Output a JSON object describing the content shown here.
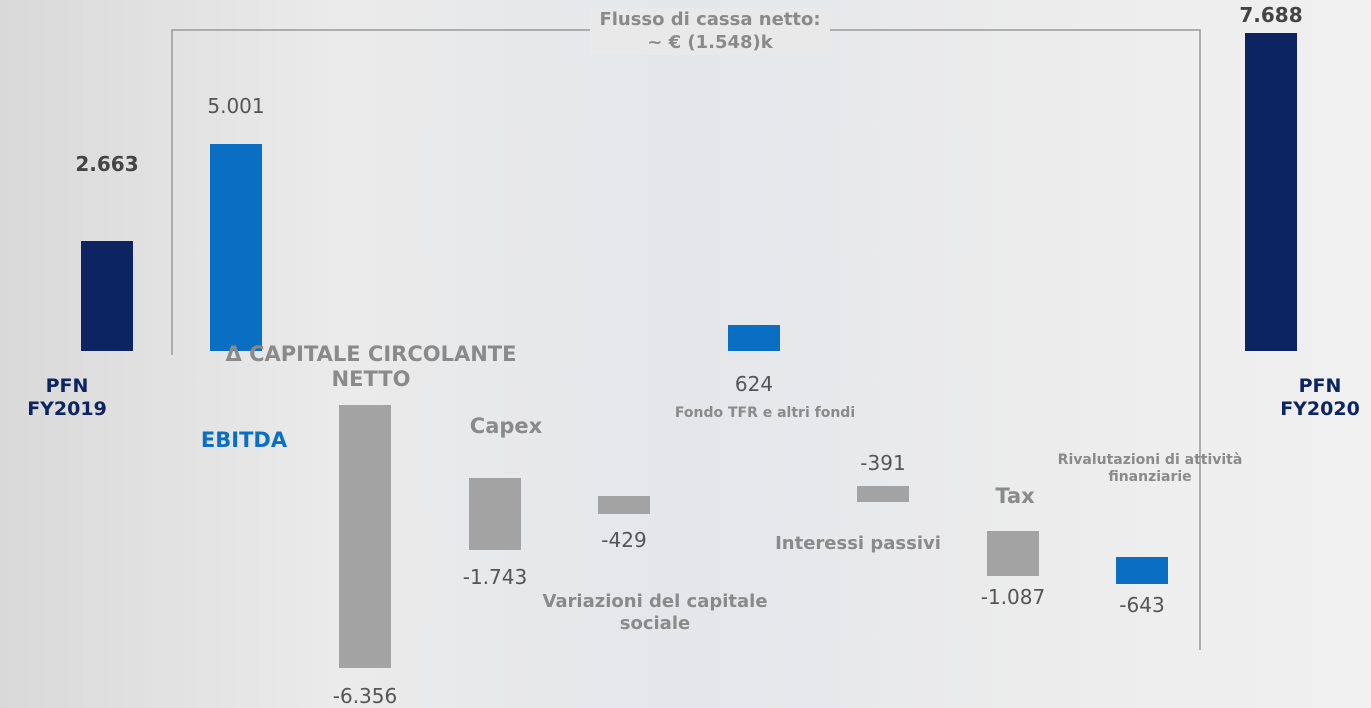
{
  "chart_data": {
    "type": "waterfall",
    "annotation": "Flusso di cassa netto: ~ € (1.548)k",
    "categories": [
      "PFN FY2019",
      "EBITDA",
      "Δ CAPITALE CIRCOLANTE NETTO",
      "Capex",
      "Variazioni del capitale sociale",
      "Fondo TFR e altri fondi",
      "Interessi passivi",
      "Tax",
      "Rivalutazioni di attività finanziarie",
      "PFN FY2020"
    ],
    "values": [
      2663,
      5001,
      -6356,
      -1743,
      -429,
      624,
      -391,
      -1087,
      -643,
      7688
    ],
    "value_labels": [
      "2.663",
      "5.001",
      "-6.356",
      "-1.743",
      "-429",
      "624",
      "-391",
      "-1.087",
      "-643",
      "7.688"
    ],
    "colors": [
      "#0c2461",
      "#0a6ec2",
      "#a3a3a3",
      "#a3a3a3",
      "#a3a3a3",
      "#0a6ec2",
      "#a3a3a3",
      "#a3a3a3",
      "#0a6ec2",
      "#0c2461"
    ]
  }
}
